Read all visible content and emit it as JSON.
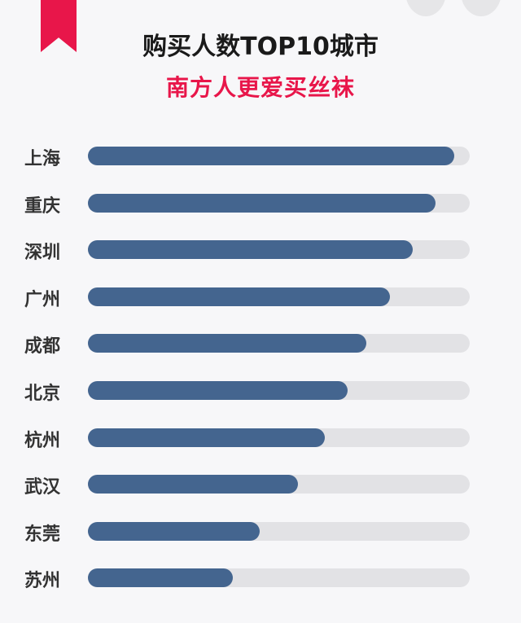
{
  "chart_data": {
    "type": "bar",
    "orientation": "horizontal",
    "title": "购买人数TOP10城市",
    "subtitle": "南方人更爱买丝袜",
    "categories": [
      "上海",
      "重庆",
      "深圳",
      "广州",
      "成都",
      "北京",
      "杭州",
      "武汉",
      "东莞",
      "苏州"
    ],
    "values": [
      96,
      91,
      85,
      79,
      73,
      68,
      62,
      55,
      45,
      38
    ],
    "value_unit": "percent of track (relative, no axis shown)",
    "grid": false,
    "colors": {
      "bar": "#44658f",
      "track": "#e2e2e5",
      "accent": "#e8164a"
    }
  }
}
